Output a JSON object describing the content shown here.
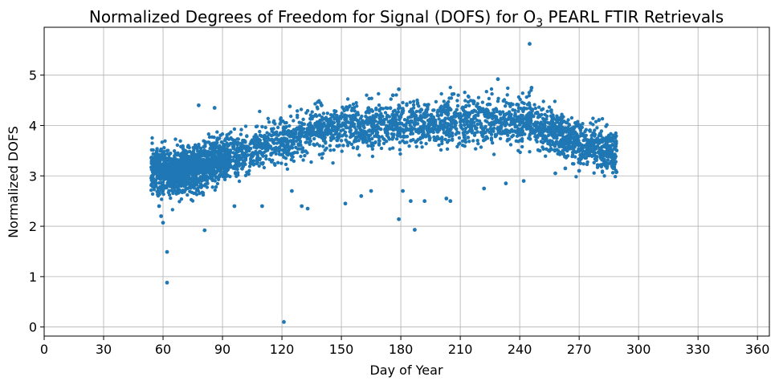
{
  "chart_data": {
    "type": "scatter",
    "title_main": "Normalized Degrees of Freedom for Signal (DOFS) for O",
    "title_sub": "3",
    "title_tail": " PEARL FTIR Retrievals",
    "xlabel": "Day of Year",
    "ylabel": "Normalized DOFS",
    "xlim": [
      0,
      366
    ],
    "ylim": [
      -0.18,
      5.95
    ],
    "xticks": [
      0,
      30,
      60,
      90,
      120,
      150,
      180,
      210,
      240,
      270,
      300,
      330,
      360
    ],
    "yticks": [
      0,
      1,
      2,
      3,
      4,
      5
    ],
    "grid": true,
    "marker_color": "#1f77b4",
    "main_cloud": {
      "x_range": [
        54,
        289
      ],
      "trend": [
        [
          54,
          3.15
        ],
        [
          65,
          3.05
        ],
        [
          75,
          3.15
        ],
        [
          90,
          3.35
        ],
        [
          105,
          3.5
        ],
        [
          120,
          3.7
        ],
        [
          135,
          3.85
        ],
        [
          150,
          3.95
        ],
        [
          165,
          4.0
        ],
        [
          180,
          4.05
        ],
        [
          200,
          4.05
        ],
        [
          215,
          4.1
        ],
        [
          230,
          4.1
        ],
        [
          245,
          4.05
        ],
        [
          255,
          3.9
        ],
        [
          265,
          3.75
        ],
        [
          275,
          3.6
        ],
        [
          289,
          3.45
        ]
      ],
      "spread": 0.22,
      "approx_count": 4000
    },
    "notable_points": [
      {
        "x": 245,
        "y": 5.62
      },
      {
        "x": 229,
        "y": 4.92
      },
      {
        "x": 246,
        "y": 4.75
      },
      {
        "x": 62,
        "y": 1.49
      },
      {
        "x": 62,
        "y": 0.88
      },
      {
        "x": 81,
        "y": 1.92
      },
      {
        "x": 121,
        "y": 0.1
      },
      {
        "x": 187,
        "y": 1.93
      },
      {
        "x": 179,
        "y": 2.14
      },
      {
        "x": 59,
        "y": 2.2
      },
      {
        "x": 60,
        "y": 2.07
      },
      {
        "x": 58,
        "y": 2.4
      },
      {
        "x": 152,
        "y": 2.45
      },
      {
        "x": 160,
        "y": 2.6
      },
      {
        "x": 165,
        "y": 2.7
      },
      {
        "x": 181,
        "y": 2.7
      },
      {
        "x": 185,
        "y": 2.5
      },
      {
        "x": 192,
        "y": 2.5
      },
      {
        "x": 203,
        "y": 2.55
      },
      {
        "x": 205,
        "y": 2.5
      },
      {
        "x": 222,
        "y": 2.75
      },
      {
        "x": 233,
        "y": 2.85
      },
      {
        "x": 242,
        "y": 2.9
      },
      {
        "x": 258,
        "y": 3.05
      },
      {
        "x": 125,
        "y": 2.7
      },
      {
        "x": 130,
        "y": 2.4
      },
      {
        "x": 133,
        "y": 2.35
      },
      {
        "x": 110,
        "y": 2.4
      },
      {
        "x": 96,
        "y": 2.4
      },
      {
        "x": 140,
        "y": 4.4
      },
      {
        "x": 124,
        "y": 4.38
      },
      {
        "x": 78,
        "y": 4.4
      },
      {
        "x": 86,
        "y": 4.35
      },
      {
        "x": 179,
        "y": 4.72
      },
      {
        "x": 176,
        "y": 4.6
      },
      {
        "x": 206,
        "y": 4.62
      },
      {
        "x": 263,
        "y": 3.15
      },
      {
        "x": 270,
        "y": 3.1
      },
      {
        "x": 285,
        "y": 3.8
      },
      {
        "x": 288,
        "y": 3.35
      }
    ]
  }
}
